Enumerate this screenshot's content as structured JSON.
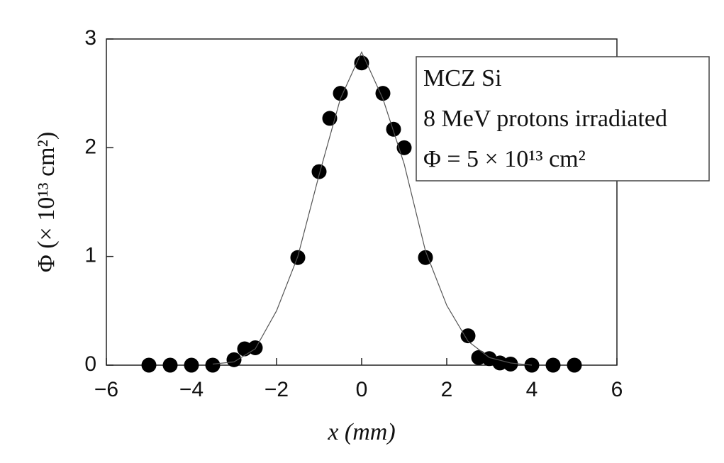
{
  "chart_data": {
    "type": "scatter",
    "xlabel": "x (mm)",
    "ylabel": "Φ (× 10¹³ cm²)",
    "annotations": [
      "MCZ Si",
      "8 MeV protons irradiated",
      "Φ = 5 × 10¹³ cm²"
    ],
    "xlim": [
      -6,
      6
    ],
    "ylim": [
      0,
      3
    ],
    "xticks": [
      {
        "value": -6,
        "label": "−6"
      },
      {
        "value": -4,
        "label": "−4"
      },
      {
        "value": -2,
        "label": "−2"
      },
      0,
      2,
      4,
      6
    ],
    "yticks": [
      0,
      1,
      2,
      3
    ],
    "series": [
      {
        "color": "#000000",
        "x": [
          -5,
          -4.5,
          -4,
          -3.5,
          -3,
          -2.75,
          -2.5,
          -1.5,
          -1,
          -0.75,
          -0.5,
          0,
          0.5,
          0.75,
          1,
          1.5,
          2.5,
          2.75,
          3,
          3.25,
          3.5,
          4,
          4.5,
          5
        ],
        "values": [
          0,
          0,
          0,
          0,
          0.05,
          0.15,
          0.16,
          0.99,
          1.78,
          2.27,
          2.5,
          2.78,
          2.5,
          2.17,
          2.0,
          0.99,
          0.27,
          0.07,
          0.06,
          0.02,
          0.01,
          0,
          0,
          0
        ]
      },
      {
        "color": "#555555",
        "line": true,
        "x": [
          -3.5,
          -3,
          -2.5,
          -2,
          -1.5,
          -1,
          -0.5,
          0,
          0.5,
          1,
          1.5,
          2,
          2.5,
          3,
          3.5,
          4
        ],
        "values": [
          0.01,
          0.03,
          0.15,
          0.5,
          1.0,
          1.75,
          2.45,
          2.88,
          2.45,
          1.85,
          1.05,
          0.55,
          0.22,
          0.07,
          0.02,
          0
        ]
      }
    ]
  }
}
